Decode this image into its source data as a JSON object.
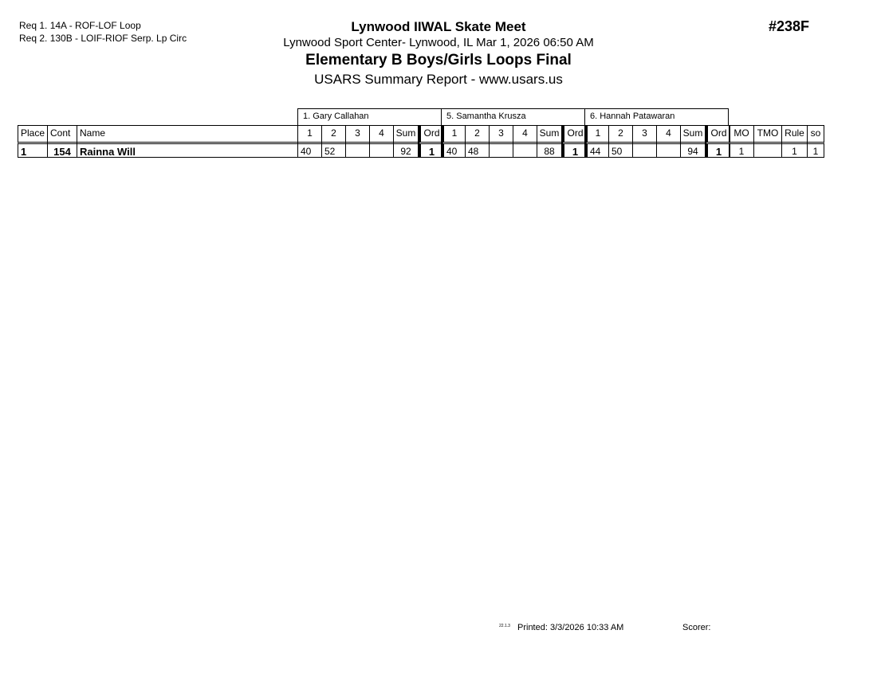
{
  "requirements": [
    "Req  1.  14A - ROF-LOF Loop",
    "Req  2.  130B - LOIF-RIOF Serp. Lp Circ"
  ],
  "header": {
    "title": "Lynwood IIWAL Skate Meet",
    "venue": "Lynwood Sport Center- Lynwood, IL  Mar 1, 2026  06:50 AM",
    "event": "Elementary B Boys/Girls Loops Final",
    "report": "USARS Summary Report - www.usars.us",
    "event_number": "#238F"
  },
  "table": {
    "judges": [
      "1.  Gary  Callahan",
      "5.  Samantha Krusza",
      "6.  Hannah  Patawaran"
    ],
    "left_headers": [
      "Place",
      "Cont",
      "Name"
    ],
    "judge_headers": [
      "1",
      "2",
      "3",
      "4",
      "Sum",
      "Ord"
    ],
    "right_headers": [
      "MO",
      "TMO",
      "Rule",
      "so"
    ],
    "rows": [
      {
        "place": "1",
        "cont": "154",
        "name": "Rainna Will",
        "judges": [
          [
            "40",
            "52",
            "",
            "",
            "92",
            "1"
          ],
          [
            "40",
            "48",
            "",
            "",
            "88",
            "1"
          ],
          [
            "44",
            "50",
            "",
            "",
            "94",
            "1"
          ]
        ],
        "mo": "1",
        "tmo": "",
        "rule": "1",
        "so": "1"
      }
    ]
  },
  "footer": {
    "version": "22.1.3",
    "printed": "Printed:  3/3/2026  10:33 AM",
    "scorer": "Scorer:"
  }
}
